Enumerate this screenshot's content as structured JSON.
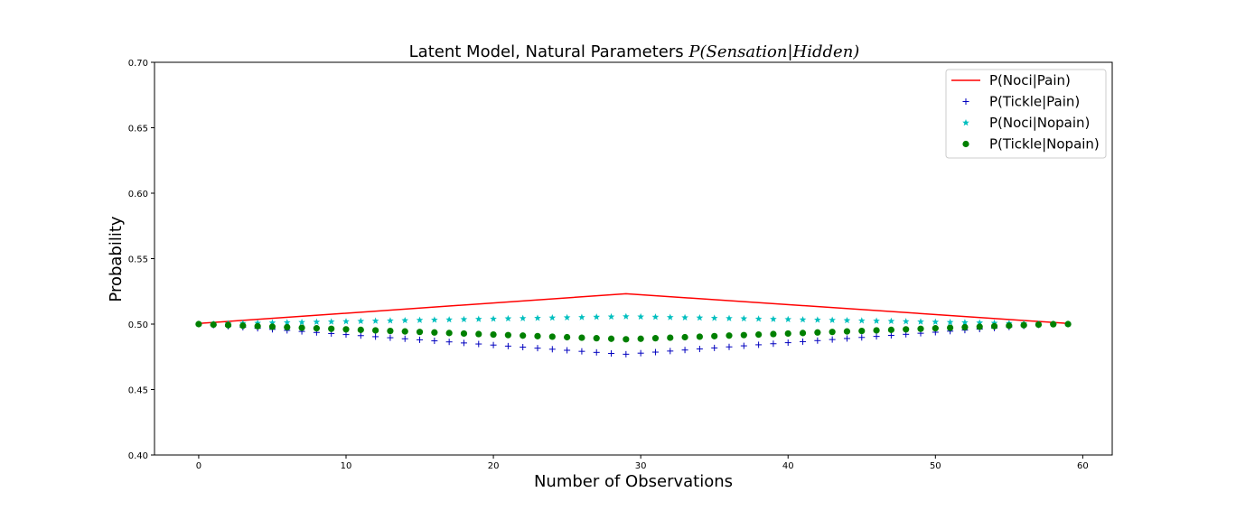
{
  "chart_data": {
    "type": "scatter",
    "title": {
      "prefix": "Latent Model, Natural Parameters ",
      "math": "P(Sensation|Hidden)"
    },
    "xlabel": "Number of Observations",
    "ylabel": "Probability",
    "xlim": [
      -3,
      62
    ],
    "ylim": [
      0.4,
      0.7
    ],
    "xticks": [
      0,
      10,
      20,
      30,
      40,
      50,
      60
    ],
    "yticks": [
      0.4,
      0.45,
      0.5,
      0.55,
      0.6,
      0.65,
      0.7
    ],
    "ytick_labels": [
      "0.40",
      "0.45",
      "0.50",
      "0.55",
      "0.60",
      "0.65",
      "0.70"
    ],
    "legend_position": "top-right",
    "grid": false,
    "series": [
      {
        "name": "P(Noci|Pain)",
        "style": "line",
        "color": "#ff0000",
        "x": [
          0,
          29,
          59
        ],
        "y": [
          0.5005,
          0.5232,
          0.5005
        ]
      },
      {
        "name": "P(Tickle|Pain)",
        "style": "plus",
        "color": "#0000bf",
        "x": [
          0,
          1,
          2,
          3,
          4,
          5,
          6,
          7,
          8,
          9,
          10,
          11,
          12,
          13,
          14,
          15,
          16,
          17,
          18,
          19,
          20,
          21,
          22,
          23,
          24,
          25,
          26,
          27,
          28,
          29,
          30,
          31,
          32,
          33,
          34,
          35,
          36,
          37,
          38,
          39,
          40,
          41,
          42,
          43,
          44,
          45,
          46,
          47,
          48,
          49,
          50,
          51,
          52,
          53,
          54,
          55,
          56,
          57,
          58,
          59
        ],
        "y": [
          0.5,
          0.4992,
          0.4984,
          0.4976,
          0.4968,
          0.496,
          0.4952,
          0.4944,
          0.4936,
          0.4928,
          0.492,
          0.4912,
          0.4904,
          0.4896,
          0.4888,
          0.488,
          0.4872,
          0.4864,
          0.4856,
          0.4848,
          0.484,
          0.4832,
          0.4824,
          0.4816,
          0.4808,
          0.48,
          0.4792,
          0.4784,
          0.4776,
          0.477,
          0.4778,
          0.4786,
          0.4794,
          0.4802,
          0.481,
          0.4818,
          0.4826,
          0.4834,
          0.4842,
          0.485,
          0.4858,
          0.4866,
          0.4874,
          0.4882,
          0.489,
          0.4898,
          0.4906,
          0.4914,
          0.4922,
          0.493,
          0.4938,
          0.4946,
          0.4954,
          0.4962,
          0.497,
          0.4978,
          0.4986,
          0.4994,
          0.5,
          0.5
        ]
      },
      {
        "name": "P(Noci|Nopain)",
        "style": "star",
        "color": "#00bfbf",
        "x": [
          0,
          1,
          2,
          3,
          4,
          5,
          6,
          7,
          8,
          9,
          10,
          11,
          12,
          13,
          14,
          15,
          16,
          17,
          18,
          19,
          20,
          21,
          22,
          23,
          24,
          25,
          26,
          27,
          28,
          29,
          30,
          31,
          32,
          33,
          34,
          35,
          36,
          37,
          38,
          39,
          40,
          41,
          42,
          43,
          44,
          45,
          46,
          47,
          48,
          49,
          50,
          51,
          52,
          53,
          54,
          55,
          56,
          57,
          58,
          59
        ],
        "y": [
          0.5,
          0.5002,
          0.5004,
          0.5006,
          0.5008,
          0.501,
          0.5012,
          0.5014,
          0.5016,
          0.5018,
          0.502,
          0.5022,
          0.5024,
          0.5026,
          0.5028,
          0.503,
          0.5032,
          0.5034,
          0.5036,
          0.5038,
          0.504,
          0.5042,
          0.5044,
          0.5046,
          0.5048,
          0.505,
          0.5052,
          0.5054,
          0.5056,
          0.5058,
          0.5056,
          0.5054,
          0.5052,
          0.505,
          0.5048,
          0.5046,
          0.5044,
          0.5042,
          0.504,
          0.5038,
          0.5036,
          0.5034,
          0.5032,
          0.503,
          0.5028,
          0.5026,
          0.5024,
          0.5022,
          0.502,
          0.5018,
          0.5016,
          0.5014,
          0.5012,
          0.501,
          0.5008,
          0.5006,
          0.5004,
          0.5002,
          0.5001,
          0.5
        ]
      },
      {
        "name": "P(Tickle|Nopain)",
        "style": "dot",
        "color": "#008000",
        "x": [
          0,
          1,
          2,
          3,
          4,
          5,
          6,
          7,
          8,
          9,
          10,
          11,
          12,
          13,
          14,
          15,
          16,
          17,
          18,
          19,
          20,
          21,
          22,
          23,
          24,
          25,
          26,
          27,
          28,
          29,
          30,
          31,
          32,
          33,
          34,
          35,
          36,
          37,
          38,
          39,
          40,
          41,
          42,
          43,
          44,
          45,
          46,
          47,
          48,
          49,
          50,
          51,
          52,
          53,
          54,
          55,
          56,
          57,
          58,
          59
        ],
        "y": [
          0.5,
          0.4996,
          0.4992,
          0.4988,
          0.4984,
          0.498,
          0.4976,
          0.4972,
          0.4968,
          0.4964,
          0.496,
          0.4956,
          0.4952,
          0.4948,
          0.4944,
          0.494,
          0.4936,
          0.4932,
          0.4928,
          0.4924,
          0.492,
          0.4916,
          0.4912,
          0.4908,
          0.4904,
          0.49,
          0.4896,
          0.4892,
          0.4888,
          0.4884,
          0.4888,
          0.4892,
          0.4896,
          0.49,
          0.4904,
          0.4908,
          0.4912,
          0.4916,
          0.492,
          0.4924,
          0.4928,
          0.4932,
          0.4936,
          0.494,
          0.4944,
          0.4948,
          0.4952,
          0.4956,
          0.496,
          0.4964,
          0.4968,
          0.4972,
          0.4976,
          0.498,
          0.4984,
          0.4988,
          0.4992,
          0.4996,
          0.4999,
          0.5
        ]
      }
    ]
  }
}
